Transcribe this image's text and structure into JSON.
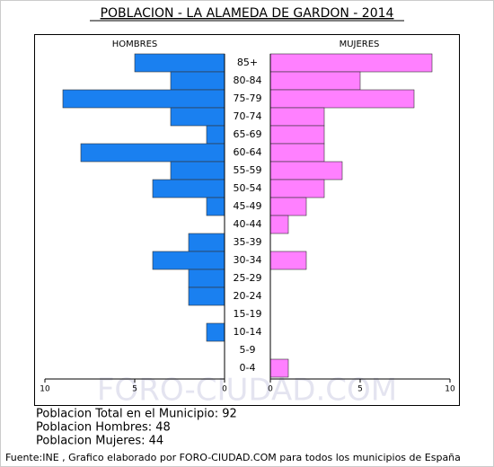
{
  "chart_data": {
    "type": "pyramid",
    "title": "POBLACION - LA ALAMEDA DE GARDON - 2014",
    "categories": [
      "85+",
      "80-84",
      "75-79",
      "70-74",
      "65-69",
      "60-64",
      "55-59",
      "50-54",
      "45-49",
      "40-44",
      "35-39",
      "30-34",
      "25-29",
      "20-24",
      "15-19",
      "10-14",
      "5-9",
      "0-4"
    ],
    "series": [
      {
        "name": "HOMBRES",
        "color": "#1a80f0",
        "values": [
          5,
          3,
          9,
          3,
          1,
          8,
          3,
          4,
          1,
          0,
          2,
          4,
          2,
          2,
          0,
          1,
          0,
          0
        ]
      },
      {
        "name": "MUJERES",
        "color": "#ff80ff",
        "values": [
          9,
          5,
          8,
          3,
          3,
          3,
          4,
          3,
          2,
          1,
          0,
          2,
          0,
          0,
          0,
          0,
          0,
          1
        ]
      }
    ],
    "xlim": [
      0,
      10
    ],
    "xticks": [
      0,
      5,
      10
    ],
    "watermark": "FORO-CIUDAD.COM"
  },
  "stats": [
    "Poblacion Total en el Municipio: 92",
    "Poblacion Hombres: 48",
    "Poblacion Mujeres: 44"
  ],
  "source": "Fuente:INE , Grafico elaborado por FORO-CIUDAD.COM para todos los municipios de España"
}
